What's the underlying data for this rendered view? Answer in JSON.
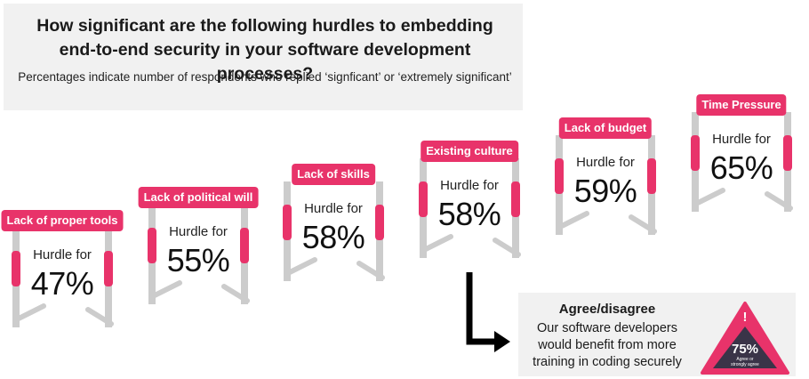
{
  "header": {
    "title": "How significant are the following hurdles to embedding end-to-end security in your software development processes?",
    "subtitle": "Percentages indicate number of respondents who replied ‘signficant’ or ‘extremely significant’"
  },
  "chart_data": {
    "type": "bar",
    "title": "How significant are the following hurdles to embedding end-to-end security in your software development processes?",
    "subtitle": "Percentages indicate number of respondents who replied ‘signficant’ or ‘extremely significant’",
    "value_prefix": "Hurdle for",
    "categories": [
      "Lack of proper tools",
      "Lack of political will",
      "Lack of skills",
      "Existing culture",
      "Lack of budget",
      "Time Pressure"
    ],
    "values": [
      47,
      55,
      58,
      58,
      59,
      65
    ],
    "unit": "%"
  },
  "agree": {
    "title": "Agree/disagree",
    "line1": "Our software developers",
    "line2": "would benefit from more",
    "line3": "training in coding securely",
    "value": "75%",
    "value_label_1": "Agree or",
    "value_label_2": "strongly agree",
    "alert_glyph": "!"
  },
  "colors": {
    "accent": "#e8336a",
    "hurdle_grey": "#cccccc",
    "panel": "#f1f1f1",
    "triangle_dark": "#3a3448"
  }
}
